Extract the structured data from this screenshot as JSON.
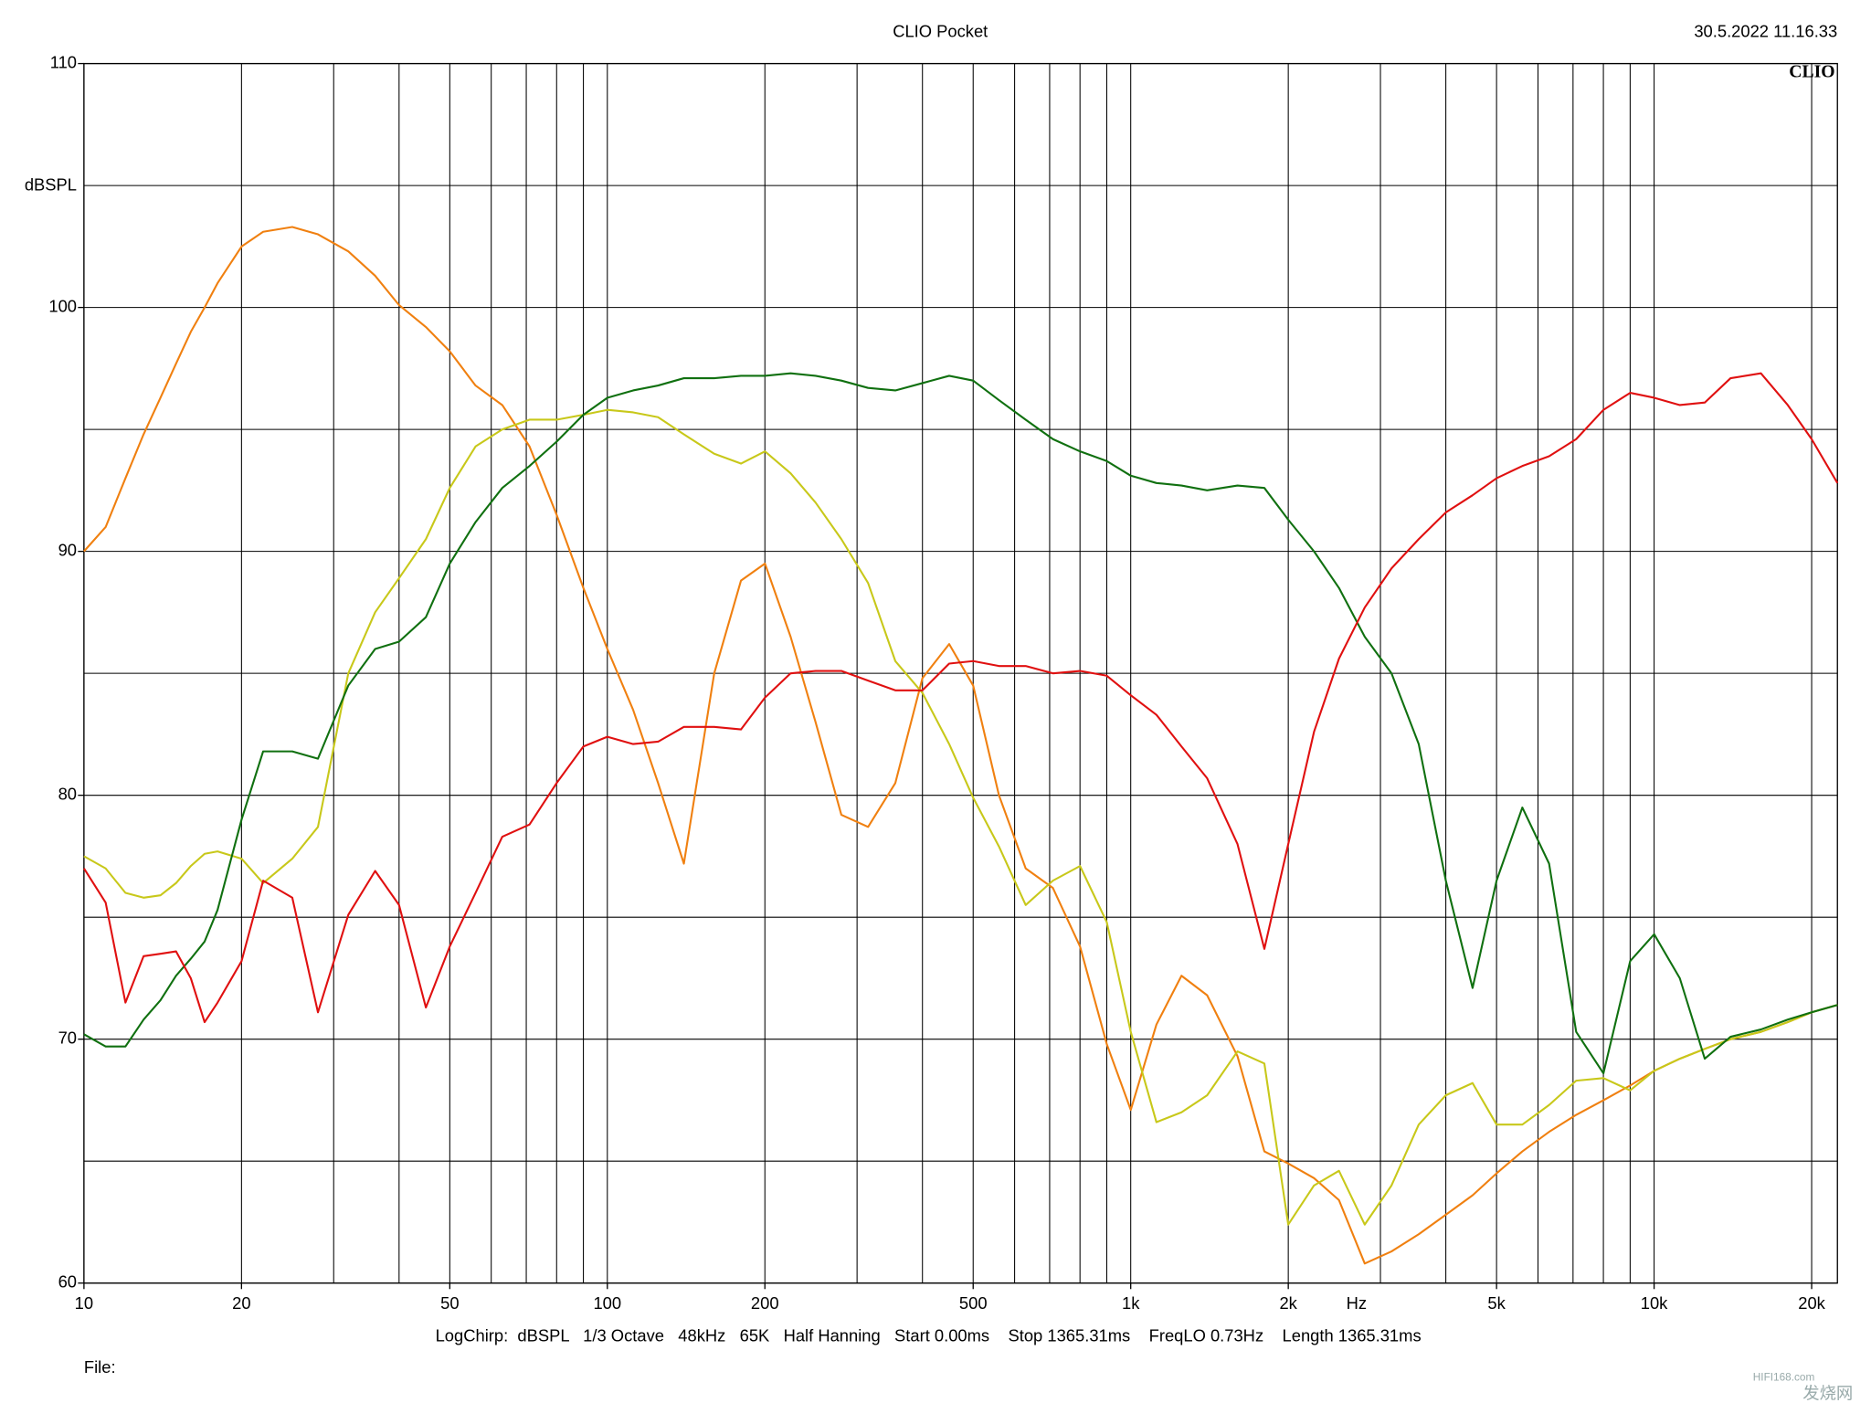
{
  "chart_data": {
    "type": "line",
    "title": "CLIO Pocket",
    "timestamp": "30.5.2022 11.16.33",
    "logo": "CLIO",
    "ylabel": "dBSPL",
    "xlabel": "Hz",
    "footer": "LogChirp:  dBSPL   1/3 Octave   48kHz   65K   Half Hanning   Start 0.00ms    Stop 1365.31ms    FreqLO 0.73Hz    Length 1365.31ms",
    "file_label": "File:",
    "watermark": [
      "HIFI168.com",
      "发烧网"
    ],
    "log_x": true,
    "grid": true,
    "xlim": [
      10,
      22400
    ],
    "ylim": [
      60,
      110
    ],
    "xticks": [
      10,
      20,
      50,
      100,
      200,
      500,
      {
        "value": 1000,
        "label": "1k"
      },
      {
        "value": 2000,
        "label": "2k"
      },
      {
        "value": 5000,
        "label": "5k"
      },
      {
        "value": 10000,
        "label": "10k"
      },
      {
        "value": 20000,
        "label": "20k"
      }
    ],
    "xgrid": [
      10,
      20,
      30,
      40,
      50,
      60,
      70,
      80,
      90,
      100,
      200,
      300,
      400,
      500,
      600,
      700,
      800,
      900,
      1000,
      2000,
      3000,
      4000,
      5000,
      6000,
      7000,
      8000,
      9000,
      10000,
      20000
    ],
    "yticks": [
      60,
      70,
      80,
      90,
      100,
      110
    ],
    "ygrid": [
      60,
      65,
      70,
      75,
      80,
      85,
      90,
      95,
      100,
      105,
      110
    ],
    "x": [
      10,
      11,
      12,
      13,
      14,
      15,
      16,
      17,
      18,
      20,
      22,
      25,
      28,
      32,
      36,
      40,
      45,
      50,
      56,
      63,
      71,
      80,
      90,
      100,
      112,
      125,
      140,
      160,
      180,
      200,
      224,
      250,
      280,
      315,
      355,
      400,
      450,
      500,
      560,
      630,
      710,
      800,
      900,
      1000,
      1120,
      1250,
      1400,
      1600,
      1800,
      2000,
      2240,
      2500,
      2800,
      3150,
      3550,
      4000,
      4500,
      5000,
      5600,
      6300,
      7100,
      8000,
      9000,
      10000,
      11200,
      12500,
      14000,
      16000,
      18000,
      20000,
      22400
    ],
    "series": [
      {
        "name": "orange",
        "color": "#f08010",
        "values": [
          90,
          91,
          93,
          94.8,
          96.3,
          97.7,
          99,
          100,
          101,
          102.5,
          103.1,
          103.3,
          103,
          102.3,
          101.3,
          100.1,
          99.2,
          98.2,
          96.8,
          96,
          94.3,
          91.5,
          88.5,
          86,
          83.5,
          80.5,
          77.2,
          85,
          88.8,
          89.5,
          86.5,
          83,
          79.2,
          78.7,
          80.5,
          84.8,
          86.2,
          84.5,
          80,
          77,
          76.2,
          73.8,
          69.8,
          67.1,
          70.6,
          72.6,
          71.8,
          69.3,
          65.4,
          64.9,
          64.3,
          63.4,
          60.8,
          61.3,
          62,
          62.8,
          63.6,
          64.5,
          65.4,
          66.2,
          66.9,
          67.5,
          68.1,
          68.7,
          69.2,
          69.6,
          70,
          70.3,
          70.7,
          71.1,
          71.4
        ]
      },
      {
        "name": "yellow",
        "color": "#c8c81a",
        "values": [
          77.5,
          77,
          76,
          75.8,
          75.9,
          76.4,
          77.1,
          77.6,
          77.7,
          77.4,
          76.4,
          77.4,
          78.7,
          85,
          87.5,
          88.9,
          90.5,
          92.6,
          94.3,
          95,
          95.4,
          95.4,
          95.6,
          95.8,
          95.7,
          95.5,
          94.8,
          94,
          93.6,
          94.1,
          93.2,
          92,
          90.5,
          88.7,
          85.5,
          84.2,
          82.1,
          79.9,
          77.9,
          75.5,
          76.5,
          77.1,
          74.8,
          70.3,
          66.6,
          67,
          67.7,
          69.5,
          69,
          62.4,
          64,
          64.6,
          62.4,
          64,
          66.5,
          67.7,
          68.2,
          66.5,
          66.5,
          67.3,
          68.3,
          68.4,
          67.9,
          68.7,
          69.2,
          69.6,
          70,
          70.3,
          70.7,
          71.1,
          71.4
        ]
      },
      {
        "name": "green",
        "color": "#107010",
        "values": [
          70.2,
          69.7,
          69.7,
          70.8,
          71.6,
          72.6,
          73.3,
          74,
          75.3,
          79,
          81.8,
          81.8,
          81.5,
          84.5,
          86,
          86.3,
          87.3,
          89.5,
          91.2,
          92.6,
          93.5,
          94.5,
          95.6,
          96.3,
          96.6,
          96.8,
          97.1,
          97.1,
          97.2,
          97.2,
          97.3,
          97.2,
          97,
          96.7,
          96.6,
          96.9,
          97.2,
          97,
          96.2,
          95.4,
          94.6,
          94.1,
          93.7,
          93.1,
          92.8,
          92.7,
          92.5,
          92.7,
          92.6,
          91.3,
          90,
          88.5,
          86.5,
          85,
          82.1,
          76.5,
          72.1,
          76.5,
          79.5,
          77.2,
          70.3,
          68.6,
          73.2,
          74.3,
          72.5,
          69.2,
          70.1,
          70.4,
          70.8,
          71.1,
          71.4
        ]
      },
      {
        "name": "red",
        "color": "#e01010",
        "values": [
          77,
          75.6,
          71.5,
          73.4,
          73.5,
          73.6,
          72.5,
          70.7,
          71.5,
          73.2,
          76.5,
          75.8,
          71.1,
          75.1,
          76.9,
          75.5,
          71.3,
          73.8,
          76,
          78.3,
          78.8,
          80.5,
          82,
          82.4,
          82.1,
          82.2,
          82.8,
          82.8,
          82.7,
          84,
          85,
          85.1,
          85.1,
          84.7,
          84.3,
          84.3,
          85.4,
          85.5,
          85.3,
          85.3,
          85,
          85.1,
          84.9,
          84.1,
          83.3,
          82,
          80.7,
          78,
          73.7,
          78,
          82.6,
          85.6,
          87.7,
          89.3,
          90.5,
          91.6,
          92.3,
          93,
          93.5,
          93.9,
          94.6,
          95.8,
          96.5,
          96.3,
          96,
          96.1,
          97.1,
          97.3,
          96,
          94.6,
          92.8
        ]
      }
    ]
  }
}
